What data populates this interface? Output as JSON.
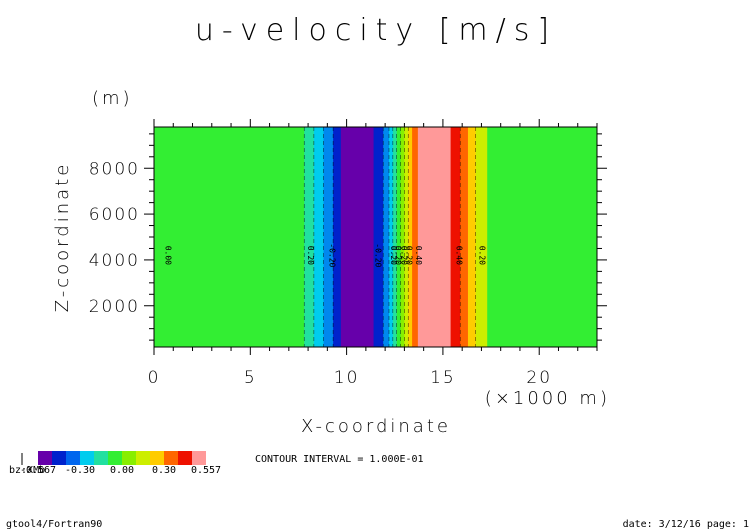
{
  "chart_data": {
    "type": "heatmap",
    "title": "u-velocity [m/s]",
    "xlabel": "X-coordinate",
    "x_unit_label": "(×1000 m)",
    "ylabel": "Z-coordinate",
    "y_unit_label": "(m)",
    "xlim": [
      0,
      23
    ],
    "ylim": [
      200,
      9800
    ],
    "x_ticks": [
      0,
      5,
      10,
      15,
      20
    ],
    "y_ticks": [
      2000,
      4000,
      6000,
      8000
    ],
    "bands": [
      {
        "x0": 0.0,
        "x1": 7.8,
        "color": "#33ee33"
      },
      {
        "x0": 7.8,
        "x1": 8.3,
        "color": "#22e0a0"
      },
      {
        "x0": 8.3,
        "x1": 8.8,
        "color": "#00ccee"
      },
      {
        "x0": 8.8,
        "x1": 9.3,
        "color": "#0088ee"
      },
      {
        "x0": 9.3,
        "x1": 9.7,
        "color": "#0022cc"
      },
      {
        "x0": 9.7,
        "x1": 11.4,
        "color": "#6600aa"
      },
      {
        "x0": 11.4,
        "x1": 11.9,
        "color": "#0022cc"
      },
      {
        "x0": 11.9,
        "x1": 12.2,
        "color": "#0088ee"
      },
      {
        "x0": 12.2,
        "x1": 12.4,
        "color": "#00ccee"
      },
      {
        "x0": 12.4,
        "x1": 12.6,
        "color": "#22e0a0"
      },
      {
        "x0": 12.6,
        "x1": 12.8,
        "color": "#33ee33"
      },
      {
        "x0": 12.8,
        "x1": 13.0,
        "color": "#88ee00"
      },
      {
        "x0": 13.0,
        "x1": 13.2,
        "color": "#ccee00"
      },
      {
        "x0": 13.2,
        "x1": 13.4,
        "color": "#ffcc00"
      },
      {
        "x0": 13.4,
        "x1": 13.7,
        "color": "#ff6600"
      },
      {
        "x0": 13.7,
        "x1": 15.4,
        "color": "#ff9999"
      },
      {
        "x0": 15.4,
        "x1": 15.9,
        "color": "#ee1100"
      },
      {
        "x0": 15.9,
        "x1": 16.3,
        "color": "#ff6600"
      },
      {
        "x0": 16.3,
        "x1": 16.7,
        "color": "#ffcc00"
      },
      {
        "x0": 16.7,
        "x1": 17.3,
        "color": "#ccee00"
      },
      {
        "x0": 17.3,
        "x1": 23.0,
        "color": "#33ee33"
      }
    ],
    "contour_lines": [
      7.8,
      8.3,
      8.8,
      9.3,
      11.9,
      12.2,
      12.4,
      12.6,
      12.8,
      13.0,
      13.2,
      15.9,
      16.7
    ],
    "contour_labels": [
      {
        "x": 0.6,
        "text": "0.00"
      },
      {
        "x": 8.0,
        "text": "0.20"
      },
      {
        "x": 9.1,
        "text": "-0.20"
      },
      {
        "x": 11.5,
        "text": "-0.20"
      },
      {
        "x": 12.3,
        "text": "0.20"
      },
      {
        "x": 12.55,
        "text": "0.20"
      },
      {
        "x": 12.85,
        "text": "0.20"
      },
      {
        "x": 13.1,
        "text": "0.20"
      },
      {
        "x": 13.6,
        "text": "0.40"
      },
      {
        "x": 15.7,
        "text": "0.40"
      },
      {
        "x": 16.9,
        "text": "0.20"
      }
    ],
    "contour_label_y": 4200,
    "legend": {
      "colors": [
        "#6600aa",
        "#0022cc",
        "#0066ee",
        "#00ccee",
        "#22e0a0",
        "#33ee33",
        "#88ee00",
        "#ccee00",
        "#ffcc00",
        "#ff6600",
        "#ee1100",
        "#ff9999"
      ],
      "tick_labels": [
        "-0.567",
        "-0.30",
        "0.00",
        "0.30",
        "0.557"
      ],
      "prefix_label": "bz:XMb"
    },
    "contour_interval_text": "CONTOUR INTERVAL = 1.000E-01",
    "grid": false
  },
  "footer": {
    "left": "gtool4/Fortran90",
    "right": "date: 3/12/16 page: 1"
  }
}
